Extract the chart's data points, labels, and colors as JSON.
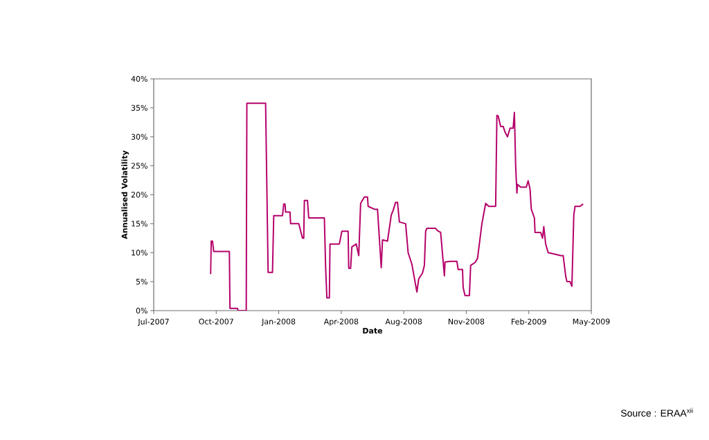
{
  "chart_data": {
    "type": "line",
    "xlabel": "Date",
    "ylabel": "Annualised Volatility",
    "x": [
      "2007-09-30",
      "2007-10-01",
      "2007-10-03",
      "2007-10-05",
      "2007-10-30",
      "2007-10-31",
      "2007-11-12",
      "2007-11-13",
      "2007-11-26",
      "2007-11-27",
      "2007-12-27",
      "2007-12-31",
      "2008-01-07",
      "2008-01-09",
      "2008-01-23",
      "2008-01-25",
      "2008-01-27",
      "2008-01-28",
      "2008-02-04",
      "2008-02-05",
      "2008-02-18",
      "2008-02-24",
      "2008-02-26",
      "2008-02-27",
      "2008-03-03",
      "2008-03-05",
      "2008-03-30",
      "2008-04-01",
      "2008-04-03",
      "2008-04-07",
      "2008-04-08",
      "2008-04-23",
      "2008-04-27",
      "2008-05-07",
      "2008-05-08",
      "2008-05-11",
      "2008-05-13",
      "2008-05-20",
      "2008-05-24",
      "2008-05-27",
      "2008-06-02",
      "2008-06-07",
      "2008-06-08",
      "2008-06-18",
      "2008-06-23",
      "2008-06-29",
      "2008-07-01",
      "2008-07-09",
      "2008-07-15",
      "2008-07-18",
      "2008-07-22",
      "2008-07-25",
      "2008-07-28",
      "2008-08-07",
      "2008-08-11",
      "2008-08-17",
      "2008-08-25",
      "2008-08-28",
      "2008-09-03",
      "2008-09-06",
      "2008-09-08",
      "2008-09-10",
      "2008-09-24",
      "2008-09-27",
      "2008-10-02",
      "2008-10-08",
      "2008-10-09",
      "2008-10-17",
      "2008-10-28",
      "2008-10-30",
      "2008-11-06",
      "2008-11-07",
      "2008-11-10",
      "2008-11-17",
      "2008-11-19",
      "2008-11-26",
      "2008-11-30",
      "2008-12-07",
      "2008-12-13",
      "2008-12-18",
      "2008-12-29",
      "2008-12-31",
      "2009-01-02",
      "2009-01-06",
      "2009-01-10",
      "2009-01-13",
      "2009-01-17",
      "2009-01-21",
      "2009-01-26",
      "2009-01-28",
      "2009-01-30",
      "2009-02-01",
      "2009-02-02",
      "2009-02-07",
      "2009-02-16",
      "2009-02-19",
      "2009-02-22",
      "2009-02-24",
      "2009-03-01",
      "2009-03-02",
      "2009-03-11",
      "2009-03-14",
      "2009-03-16",
      "2009-03-19",
      "2009-03-23",
      "2009-04-01",
      "2009-04-12",
      "2009-04-16",
      "2009-04-20",
      "2009-04-22",
      "2009-04-27",
      "2009-04-30",
      "2009-05-03",
      "2009-05-05",
      "2009-05-13",
      "2009-05-18"
    ],
    "series": [
      {
        "color": "#b5006a",
        "values": [
          6.3,
          12,
          12,
          10.2,
          10.2,
          0.4,
          0.4,
          0,
          0,
          35.8,
          35.8,
          6.6,
          6.6,
          16.4,
          16.4,
          18.4,
          18.4,
          17,
          17,
          15,
          15,
          12.5,
          12.5,
          19,
          19,
          16,
          16,
          7.5,
          2.2,
          2.2,
          11.5,
          11.5,
          13.7,
          13.7,
          7.3,
          7.3,
          11,
          11.5,
          9.5,
          18.5,
          19.6,
          19.6,
          18,
          17.5,
          17.5,
          7.4,
          12.2,
          12,
          16.5,
          17.3,
          18.7,
          18.7,
          15.3,
          15,
          10,
          8,
          3.2,
          5.5,
          6.5,
          7.8,
          13.7,
          14.2,
          14.2,
          13.8,
          13.5,
          6,
          8.4,
          8.5,
          8.5,
          7.1,
          7.1,
          4,
          2.6,
          2.6,
          7.8,
          8.3,
          9,
          15,
          18.5,
          18,
          18,
          33.7,
          33.6,
          31.8,
          31.8,
          30.8,
          30,
          31.5,
          31.5,
          34.2,
          25,
          20.3,
          21.8,
          21.3,
          21.3,
          22.4,
          21,
          17.5,
          16,
          13.5,
          13.5,
          12.5,
          14.5,
          11.5,
          10,
          9.8,
          9.5,
          9.5,
          6,
          5,
          5,
          4.2,
          16.5,
          18,
          18,
          18.4
        ]
      }
    ],
    "xlim": [
      "2007-07-01",
      "2009-05-31"
    ],
    "xticks": [
      {
        "value": "2007-07-01",
        "label": "Jul-2007"
      },
      {
        "value": "2007-10-09",
        "label": "Oct-2007"
      },
      {
        "value": "2008-01-17",
        "label": "Jan-2008"
      },
      {
        "value": "2008-04-26",
        "label": "Apr-2008"
      },
      {
        "value": "2008-08-04",
        "label": "Aug-2008"
      },
      {
        "value": "2008-11-12",
        "label": "Nov-2008"
      },
      {
        "value": "2009-02-20",
        "label": "Feb-2009"
      },
      {
        "value": "2009-05-31",
        "label": "May-2009"
      }
    ],
    "ylim": [
      0,
      40
    ],
    "yticks": [
      {
        "value": 0,
        "label": "0%"
      },
      {
        "value": 5,
        "label": "5%"
      },
      {
        "value": 10,
        "label": "10%"
      },
      {
        "value": 15,
        "label": "15%"
      },
      {
        "value": 20,
        "label": "20%"
      },
      {
        "value": 25,
        "label": "25%"
      },
      {
        "value": 30,
        "label": "30%"
      },
      {
        "value": 35,
        "label": "35%"
      },
      {
        "value": 40,
        "label": "40%"
      }
    ],
    "annotations": [
      "Source : ERAA$^{xii}$"
    ]
  }
}
